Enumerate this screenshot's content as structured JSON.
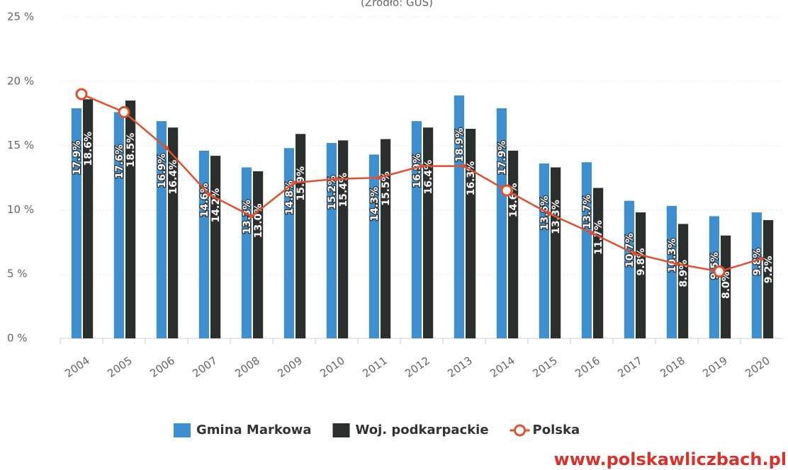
{
  "chart_data": {
    "type": "bar",
    "subtitle": "(Źródło: GUS)",
    "source": "www.polskawliczbach.pl",
    "categories": [
      "2004",
      "2005",
      "2006",
      "2007",
      "2008",
      "2009",
      "2010",
      "2011",
      "2012",
      "2013",
      "2014",
      "2015",
      "2016",
      "2017",
      "2018",
      "2019",
      "2020"
    ],
    "series": [
      {
        "name": "Gmina Markowa",
        "color": "#3e8fd0",
        "values": [
          17.9,
          17.6,
          16.9,
          14.6,
          13.3,
          14.8,
          15.2,
          14.3,
          16.9,
          18.9,
          17.9,
          13.6,
          13.7,
          10.7,
          10.3,
          9.5,
          9.8
        ],
        "value_labels": [
          "17.9%",
          "17.6%",
          "16.9%",
          "14.6%",
          "13.3%",
          "14.8%",
          "15.2%",
          "14.3%",
          "16.9%",
          "18.9%",
          "17.9%",
          "13.6%",
          "13.7%",
          "10.7%",
          "10.3%",
          "9.5%",
          "9.8%"
        ]
      },
      {
        "name": "Woj. podkarpackie",
        "color": "#2a2e2c",
        "values": [
          18.6,
          18.5,
          16.4,
          14.2,
          13.0,
          15.9,
          15.4,
          15.5,
          16.4,
          16.3,
          14.6,
          13.3,
          11.7,
          9.8,
          8.9,
          8.0,
          9.2
        ],
        "value_labels": [
          "18.6%",
          "18.5%",
          "16.4%",
          "14.2%",
          "13.0%",
          "15.9%",
          "15.4%",
          "15.5%",
          "16.4%",
          "16.3%",
          "14.6%",
          "13.3%",
          "11.7%",
          "9.8%",
          "8.9%",
          "8.0%",
          "9.2%"
        ]
      },
      {
        "name": "Polska",
        "color": "#e0502e",
        "type": "line",
        "values": [
          19.0,
          17.6,
          14.8,
          11.2,
          9.5,
          12.1,
          12.4,
          12.5,
          13.4,
          13.4,
          11.5,
          9.7,
          8.2,
          6.6,
          5.8,
          5.2,
          6.2
        ]
      }
    ],
    "ylim": [
      0,
      25
    ],
    "yticks": [
      {
        "value": 0,
        "label": "0 %"
      },
      {
        "value": 5,
        "label": "5 %"
      },
      {
        "value": 10,
        "label": "10 %"
      },
      {
        "value": 15,
        "label": "15 %"
      },
      {
        "value": 20,
        "label": "20 %"
      },
      {
        "value": 25,
        "label": "25 %"
      }
    ],
    "grid": true
  }
}
